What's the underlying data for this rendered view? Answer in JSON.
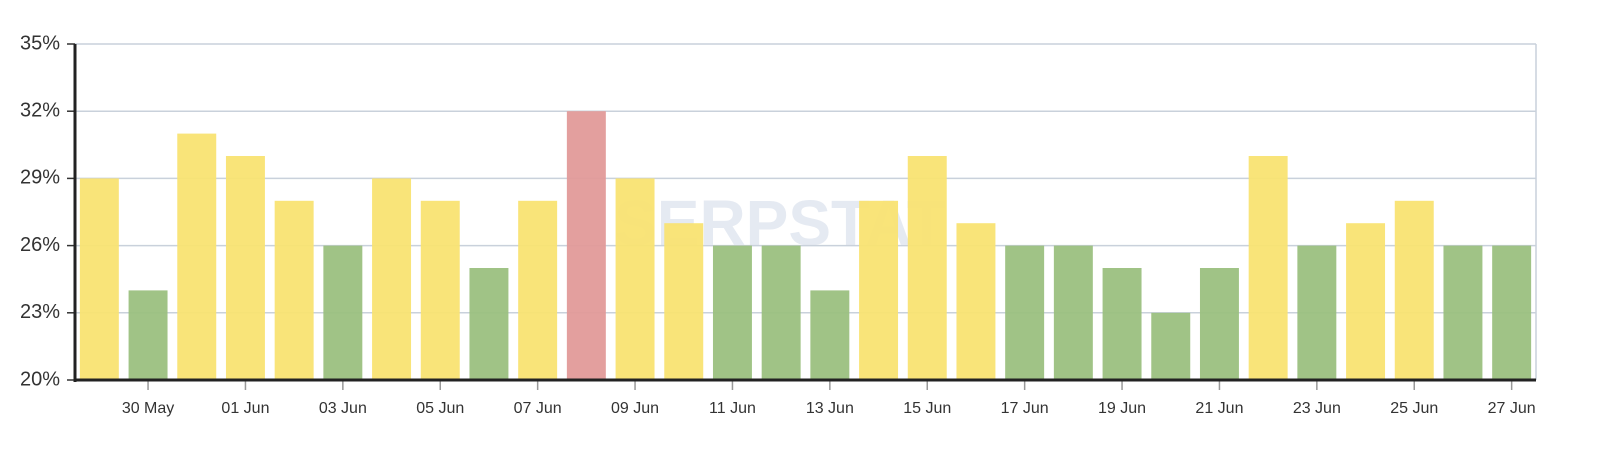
{
  "chart_data": {
    "type": "bar",
    "categories": [
      null,
      "30 May",
      null,
      "01 Jun",
      null,
      "03 Jun",
      null,
      "05 Jun",
      null,
      "07 Jun",
      null,
      "09 Jun",
      null,
      "11 Jun",
      null,
      "13 Jun",
      null,
      "15 Jun",
      null,
      "17 Jun",
      null,
      "19 Jun",
      null,
      "21 Jun",
      null,
      "23 Jun",
      null,
      "25 Jun",
      null,
      "27 Jun"
    ],
    "values": [
      29,
      24,
      31,
      30,
      28,
      26,
      29,
      28,
      25,
      28,
      32,
      29,
      27,
      26,
      26,
      24,
      28,
      30,
      27,
      26,
      26,
      25,
      23,
      25,
      30,
      26,
      27,
      28,
      26,
      26
    ],
    "colors": [
      "#f9e372",
      "#9bc080",
      "#f9e372",
      "#f9e372",
      "#f9e372",
      "#9bc080",
      "#f9e372",
      "#f9e372",
      "#9bc080",
      "#f9e372",
      "#e19a99",
      "#f9e372",
      "#f9e372",
      "#9bc080",
      "#9bc080",
      "#9bc080",
      "#f9e372",
      "#f9e372",
      "#f9e372",
      "#9bc080",
      "#9bc080",
      "#9bc080",
      "#9bc080",
      "#9bc080",
      "#f9e372",
      "#9bc080",
      "#f9e372",
      "#f9e372",
      "#9bc080",
      "#9bc080"
    ],
    "ylim": [
      20,
      35
    ],
    "yticks": [
      {
        "value": 20,
        "label": "20%"
      },
      {
        "value": 23,
        "label": "23%"
      },
      {
        "value": 26,
        "label": "26%"
      },
      {
        "value": 29,
        "label": "29%"
      },
      {
        "value": 32,
        "label": "32%"
      },
      {
        "value": 35,
        "label": "35%"
      }
    ],
    "grid": true,
    "watermark": "SERPSTAT"
  }
}
